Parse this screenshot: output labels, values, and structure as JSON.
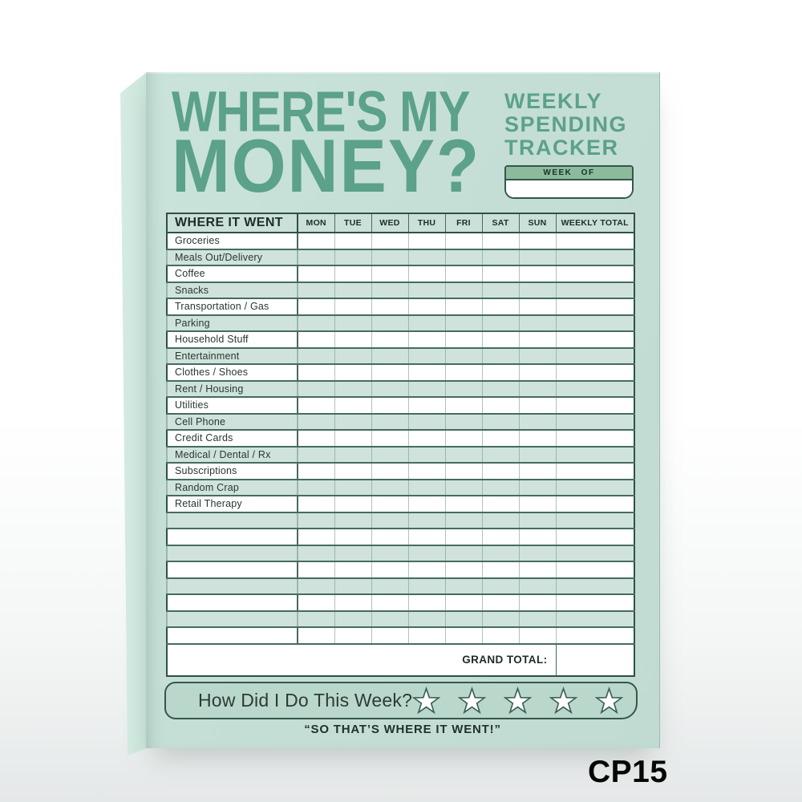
{
  "header": {
    "title_line1": "WHERE'S MY",
    "title_line2": "MONEY?",
    "subtitle_lines": [
      "WEEKLY",
      "SPENDING",
      "TRACKER"
    ],
    "week_of_label": "WEEK OF",
    "week_of_value": ""
  },
  "table": {
    "corner_header": "WHERE IT WENT",
    "day_columns": [
      "MON",
      "TUE",
      "WED",
      "THU",
      "FRI",
      "SAT",
      "SUN"
    ],
    "total_column": "WEEKLY TOTAL",
    "rows": [
      "Groceries",
      "Meals Out/Delivery",
      "Coffee",
      "Snacks",
      "Transportation / Gas",
      "Parking",
      "Household Stuff",
      "Entertainment",
      "Clothes / Shoes",
      "Rent / Housing",
      "Utilities",
      "Cell Phone",
      "Credit Cards",
      "Medical / Dental / Rx",
      "Subscriptions",
      "Random Crap",
      "Retail Therapy",
      "",
      "",
      "",
      "",
      "",
      "",
      "",
      ""
    ],
    "grand_total_label": "GRAND TOTAL:",
    "grand_total_value": ""
  },
  "rating": {
    "question": "How Did I Do This Week?",
    "star_count": 5
  },
  "footer": {
    "quote": "“SO THAT’S WHERE IT WENT!”"
  },
  "product_code": "CP15",
  "colors": {
    "pad": "#c5dfd7",
    "pad_side": "#cfe6dd",
    "accent_green": "#5ca189",
    "week_bar_green": "#8cbb9b",
    "tint_row": "#cfe3dc",
    "border_dark": "#2e5048",
    "ink": "#20312c"
  }
}
